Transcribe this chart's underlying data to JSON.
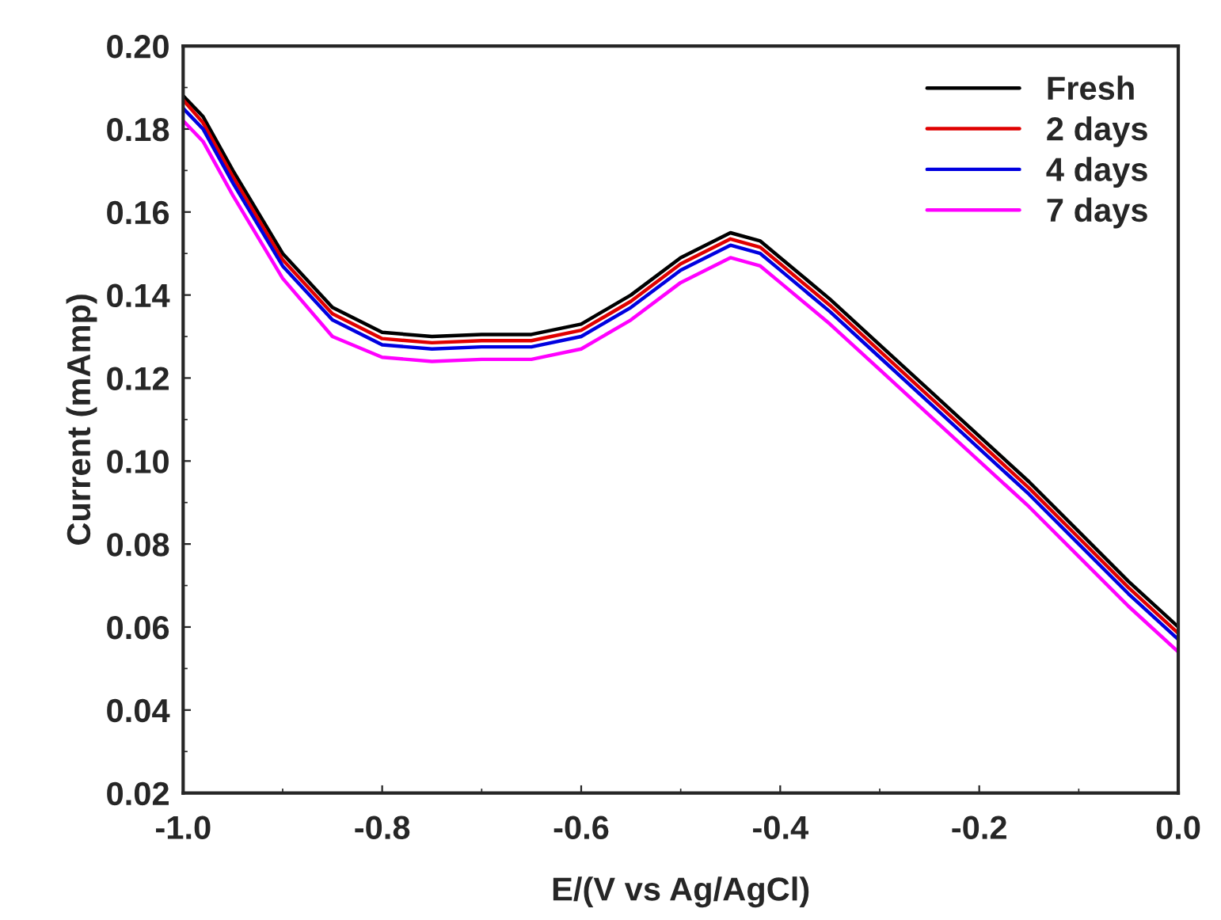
{
  "chart_data": {
    "type": "line",
    "xlabel": "E/(V vs Ag/AgCl)",
    "ylabel": "Current (mAmp)",
    "x": [
      -1.0,
      -0.98,
      -0.95,
      -0.9,
      -0.85,
      -0.8,
      -0.75,
      -0.7,
      -0.65,
      -0.6,
      -0.55,
      -0.5,
      -0.45,
      -0.42,
      -0.4,
      -0.35,
      -0.3,
      -0.25,
      -0.2,
      -0.15,
      -0.1,
      -0.05,
      0.0
    ],
    "series": [
      {
        "name": "Fresh",
        "color": "#000000",
        "values": [
          0.188,
          0.183,
          0.17,
          0.15,
          0.137,
          0.131,
          0.13,
          0.1305,
          0.1305,
          0.133,
          0.14,
          0.149,
          0.155,
          0.153,
          0.149,
          0.139,
          0.128,
          0.117,
          0.106,
          0.095,
          0.083,
          0.071,
          0.06
        ]
      },
      {
        "name": "2 days",
        "color": "#e00000",
        "values": [
          0.187,
          0.1815,
          0.1685,
          0.1485,
          0.1355,
          0.1295,
          0.1285,
          0.129,
          0.129,
          0.1315,
          0.1385,
          0.1475,
          0.1535,
          0.1515,
          0.1475,
          0.1375,
          0.1265,
          0.1155,
          0.1045,
          0.0935,
          0.0815,
          0.0695,
          0.0585
        ]
      },
      {
        "name": "4 days",
        "color": "#0000e0",
        "values": [
          0.185,
          0.18,
          0.167,
          0.147,
          0.134,
          0.128,
          0.127,
          0.1275,
          0.1275,
          0.13,
          0.137,
          0.146,
          0.152,
          0.15,
          0.146,
          0.136,
          0.125,
          0.114,
          0.103,
          0.092,
          0.08,
          0.068,
          0.057
        ]
      },
      {
        "name": "7 days",
        "color": "#ff00ff",
        "values": [
          0.182,
          0.177,
          0.164,
          0.144,
          0.13,
          0.125,
          0.124,
          0.1245,
          0.1245,
          0.127,
          0.134,
          0.143,
          0.149,
          0.147,
          0.143,
          0.133,
          0.122,
          0.111,
          0.1,
          0.089,
          0.077,
          0.065,
          0.054
        ]
      }
    ],
    "xlim": [
      -1.0,
      0.0
    ],
    "xticks": [
      {
        "value": -1.0,
        "label": "-1.0"
      },
      -0.8,
      -0.6,
      -0.4,
      -0.2,
      {
        "value": 0.0,
        "label": "0.0"
      }
    ],
    "ylim": [
      0.02,
      0.2
    ],
    "yticks": [
      {
        "value": 0.02,
        "label": "0.02"
      },
      {
        "value": 0.04,
        "label": "0.04"
      },
      {
        "value": 0.06,
        "label": "0.06"
      },
      {
        "value": 0.08,
        "label": "0.08"
      },
      {
        "value": 0.1,
        "label": "0.10"
      },
      {
        "value": 0.12,
        "label": "0.12"
      },
      {
        "value": 0.14,
        "label": "0.14"
      },
      {
        "value": 0.16,
        "label": "0.16"
      },
      {
        "value": 0.18,
        "label": "0.18"
      },
      {
        "value": 0.2,
        "label": "0.20"
      }
    ],
    "grid": false,
    "legend": "top right",
    "marker": "none",
    "line_style": "solid"
  }
}
